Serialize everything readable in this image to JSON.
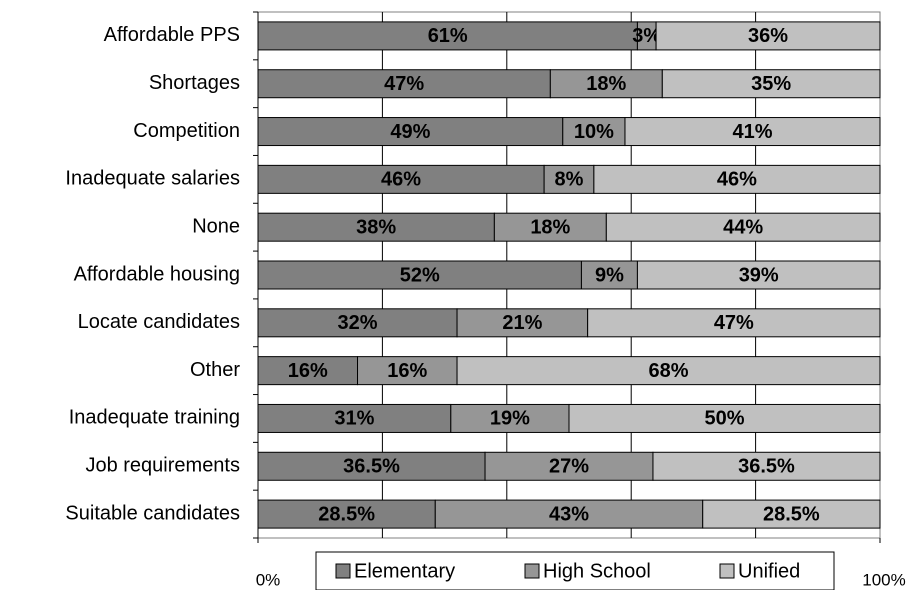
{
  "chart_data": {
    "type": "stacked_bar_horizontal",
    "categories": [
      "Affordable PPS",
      "Shortages",
      "Competition",
      "Inadequate salaries",
      "None",
      "Affordable housing",
      "Locate candidates",
      "Other",
      "Inadequate training",
      "Job requirements",
      "Suitable candidates"
    ],
    "series": [
      {
        "name": "Elementary",
        "color": "#808080",
        "values": [
          61,
          47,
          49,
          46,
          38,
          52,
          32,
          16,
          31,
          36.5,
          28.5
        ],
        "value_labels": [
          "61%",
          "47%",
          "49%",
          "46%",
          "38%",
          "52%",
          "32%",
          "16%",
          "31%",
          "36.5%",
          "28.5%"
        ]
      },
      {
        "name": "High School",
        "color": "#969696",
        "values": [
          3,
          18,
          10,
          8,
          18,
          9,
          21,
          16,
          19,
          27,
          43
        ],
        "value_labels": [
          "3%",
          "18%",
          "10%",
          "8%",
          "18%",
          "9%",
          "21%",
          "16%",
          "19%",
          "27%",
          "43%"
        ]
      },
      {
        "name": "Unified",
        "color": "#c0c0c0",
        "values": [
          36,
          35,
          41,
          46,
          44,
          39,
          47,
          68,
          50,
          36.5,
          28.5
        ],
        "value_labels": [
          "36%",
          "35%",
          "41%",
          "46%",
          "44%",
          "39%",
          "47%",
          "68%",
          "50%",
          "36.5%",
          "28.5%"
        ]
      }
    ],
    "xlim": [
      0,
      100
    ],
    "xticks": [
      {
        "value": 0,
        "label": "0%"
      },
      {
        "value": 100,
        "label": "100%"
      }
    ],
    "xgrid": [
      20,
      40,
      60,
      80
    ],
    "legend": "bottom"
  }
}
